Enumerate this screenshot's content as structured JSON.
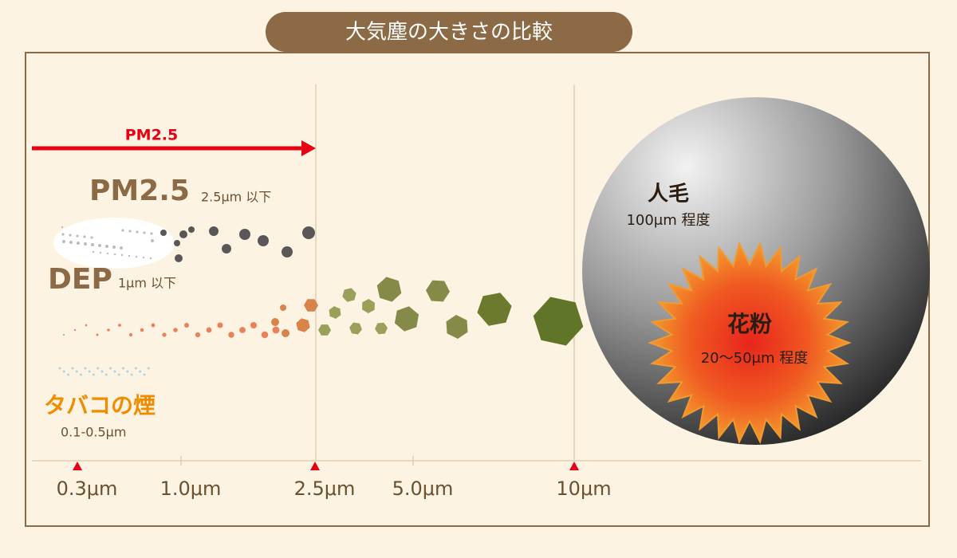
{
  "title": "大気塵の大きさの比較",
  "range_arrow": {
    "label": "PM2.5"
  },
  "particles": {
    "pm25": {
      "name": "PM2.5",
      "size": "2.5μm 以下"
    },
    "dep": {
      "name": "DEP",
      "size": "1μm 以下"
    },
    "tobacco": {
      "name": "タバコの煙",
      "size": "0.1-0.5μm"
    },
    "hair": {
      "name": "人毛",
      "size": "100μm 程度"
    },
    "pollen": {
      "name": "花粉",
      "size": "20〜50μm 程度"
    }
  },
  "axis": {
    "labels": [
      "0.3μm",
      "1.0μm",
      "2.5μm",
      "5.0μm",
      "10μm"
    ]
  }
}
